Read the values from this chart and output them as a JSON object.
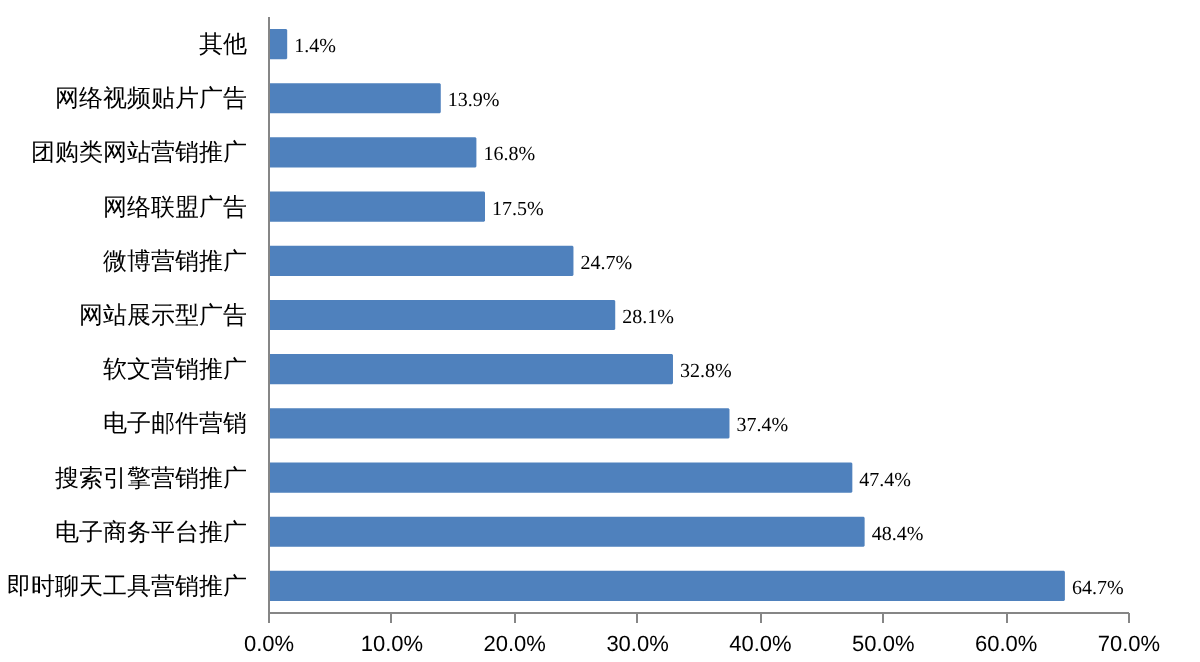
{
  "chart_data": {
    "type": "bar",
    "orientation": "horizontal",
    "categories": [
      "其他",
      "网络视频贴片广告",
      "团购类网站营销推广",
      "网络联盟广告",
      "微博营销推广",
      "网站展示型广告",
      "软文营销推广",
      "电子邮件营销",
      "搜索引擎营销推广",
      "电子商务平台推广",
      "即时聊天工具营销推广"
    ],
    "values": [
      1.4,
      13.9,
      16.8,
      17.5,
      24.7,
      28.1,
      32.8,
      37.4,
      47.4,
      48.4,
      64.7
    ],
    "value_labels": [
      "1.4%",
      "13.9%",
      "16.8%",
      "17.5%",
      "24.7%",
      "28.1%",
      "32.8%",
      "37.4%",
      "47.4%",
      "48.4%",
      "64.7%"
    ],
    "color": "#4f81bd",
    "xlim": [
      0,
      70
    ],
    "xticks": [
      {
        "value": 0,
        "label": "0.0%"
      },
      {
        "value": 10,
        "label": "10.0%"
      },
      {
        "value": 20,
        "label": "20.0%"
      },
      {
        "value": 30,
        "label": "30.0%"
      },
      {
        "value": 40,
        "label": "40.0%"
      },
      {
        "value": 50,
        "label": "50.0%"
      },
      {
        "value": 60,
        "label": "60.0%"
      },
      {
        "value": 70,
        "label": "70.0%"
      }
    ],
    "grid": false
  }
}
